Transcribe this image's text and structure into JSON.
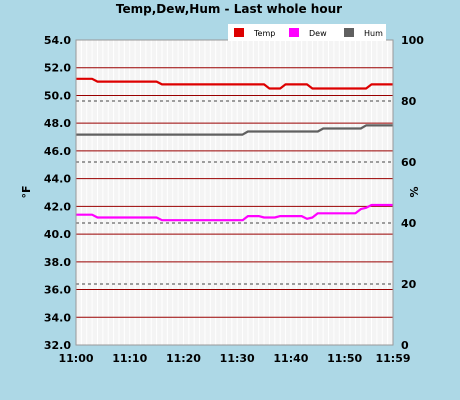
{
  "chart_data": {
    "type": "line",
    "title": "Temp,Dew,Hum - Last whole hour",
    "ylabel_left": "°F",
    "ylabel_right": "%",
    "x_ticks": [
      "11:00",
      "11:10",
      "11:20",
      "11:30",
      "11:40",
      "11:50",
      "11:59"
    ],
    "x_tick_minutes": [
      0,
      10,
      20,
      30,
      40,
      50,
      59
    ],
    "xlim_minutes": [
      0,
      59
    ],
    "ylim_left": [
      32,
      54
    ],
    "y_ticks_left": [
      "32.0",
      "34.0",
      "36.0",
      "38.0",
      "40.0",
      "42.0",
      "44.0",
      "46.0",
      "48.0",
      "50.0",
      "52.0",
      "54.0"
    ],
    "ylim_right": [
      0,
      100
    ],
    "y_ticks_right": [
      "0",
      "20",
      "40",
      "60",
      "80",
      "100"
    ],
    "grid": true,
    "legend_position": "top-right",
    "series": [
      {
        "name": "Temp",
        "axis": "left",
        "color": "#DD0000",
        "points": [
          [
            0,
            51.2
          ],
          [
            3,
            51.2
          ],
          [
            4,
            51.0
          ],
          [
            15,
            51.0
          ],
          [
            16,
            50.8
          ],
          [
            35,
            50.8
          ],
          [
            36,
            50.5
          ],
          [
            38,
            50.5
          ],
          [
            39,
            50.8
          ],
          [
            43,
            50.8
          ],
          [
            44,
            50.5
          ],
          [
            54,
            50.5
          ],
          [
            55,
            50.8
          ],
          [
            59,
            50.8
          ]
        ]
      },
      {
        "name": "Dew",
        "axis": "left",
        "color": "#FF00FF",
        "points": [
          [
            0,
            41.4
          ],
          [
            3,
            41.4
          ],
          [
            4,
            41.2
          ],
          [
            15,
            41.2
          ],
          [
            16,
            41.0
          ],
          [
            31,
            41.0
          ],
          [
            32,
            41.3
          ],
          [
            34,
            41.3
          ],
          [
            35,
            41.2
          ],
          [
            37,
            41.2
          ],
          [
            38,
            41.3
          ],
          [
            42,
            41.3
          ],
          [
            43,
            41.1
          ],
          [
            44,
            41.2
          ],
          [
            45,
            41.5
          ],
          [
            52,
            41.5
          ],
          [
            53,
            41.8
          ],
          [
            54,
            41.9
          ],
          [
            55,
            42.1
          ],
          [
            59,
            42.1
          ]
        ]
      },
      {
        "name": "Hum",
        "axis": "right",
        "color": "#606060",
        "points": [
          [
            0,
            69
          ],
          [
            31,
            69
          ],
          [
            32,
            70
          ],
          [
            45,
            70
          ],
          [
            46,
            71
          ],
          [
            53,
            71
          ],
          [
            54,
            72
          ],
          [
            59,
            72
          ]
        ]
      }
    ]
  }
}
